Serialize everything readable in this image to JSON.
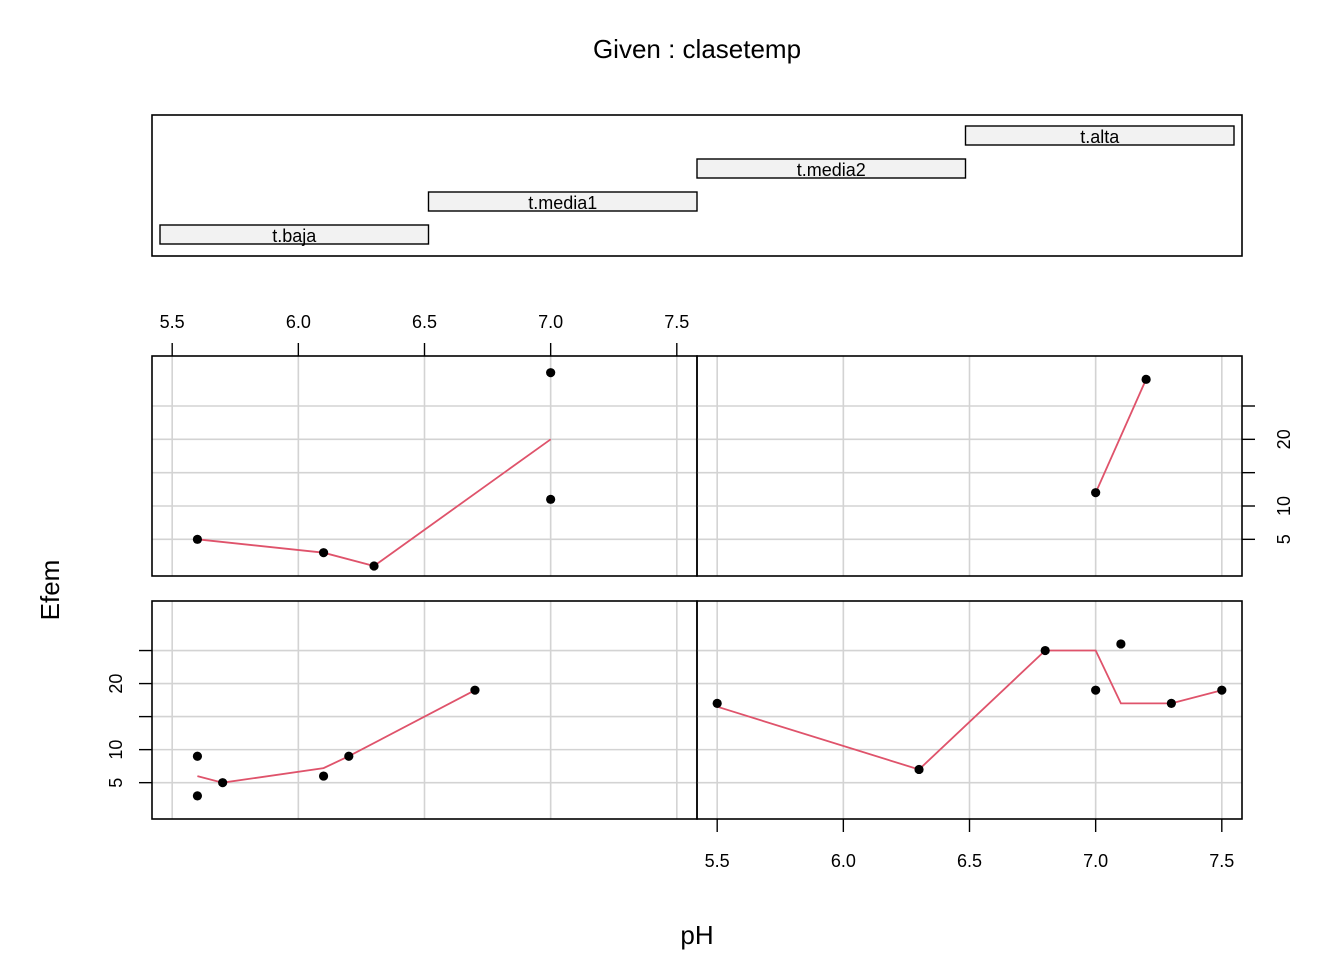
{
  "title": "Given : clasetemp",
  "xlabel": "pH",
  "ylabel": "Efem",
  "colors": {
    "points": "#000000",
    "smooth_line": "#DF536B",
    "grid": "#D3D3D3",
    "given_bar_fill": "#F2F2F2"
  },
  "chart_data": {
    "type": "scatter",
    "title": "Given : clasetemp",
    "xlabel": "pH",
    "ylabel": "Efem",
    "grid": true,
    "xlim": [
      5.5,
      7.5
    ],
    "x_ticks": [
      "5.5",
      "6.0",
      "6.5",
      "7.0",
      "7.5"
    ],
    "y_ticks": [
      "5",
      "10",
      "20"
    ],
    "given": {
      "variable": "clasetemp",
      "levels": [
        "t.baja",
        "t.media1",
        "t.media2",
        "t.alta"
      ]
    },
    "panels": [
      {
        "level": "t.baja",
        "points": [
          [
            5.6,
            9
          ],
          [
            5.6,
            3
          ],
          [
            5.7,
            5
          ],
          [
            6.1,
            6
          ],
          [
            6.2,
            9
          ],
          [
            6.7,
            19
          ]
        ],
        "smooth": [
          [
            5.6,
            6
          ],
          [
            5.7,
            5
          ],
          [
            6.1,
            7.2
          ],
          [
            6.2,
            9
          ],
          [
            6.7,
            19
          ]
        ]
      },
      {
        "level": "t.media1",
        "points": [
          [
            5.5,
            17
          ],
          [
            6.3,
            7
          ],
          [
            6.8,
            25
          ],
          [
            7.0,
            19
          ],
          [
            7.1,
            26
          ],
          [
            7.3,
            17
          ],
          [
            7.5,
            19
          ]
        ],
        "smooth": [
          [
            5.5,
            16.5
          ],
          [
            6.3,
            7
          ],
          [
            6.8,
            25
          ],
          [
            7.0,
            25
          ],
          [
            7.1,
            17
          ],
          [
            7.3,
            17
          ],
          [
            7.5,
            19
          ]
        ]
      },
      {
        "level": "t.media2",
        "points": [
          [
            5.6,
            5
          ],
          [
            6.1,
            3
          ],
          [
            6.3,
            1
          ],
          [
            7.0,
            30
          ],
          [
            7.0,
            11
          ]
        ],
        "smooth": [
          [
            5.6,
            5
          ],
          [
            6.1,
            3
          ],
          [
            6.3,
            1
          ],
          [
            7.0,
            20
          ]
        ]
      },
      {
        "level": "t.alta",
        "points": [
          [
            7.0,
            12
          ],
          [
            7.2,
            29
          ]
        ],
        "smooth": [
          [
            7.0,
            12
          ],
          [
            7.2,
            29
          ]
        ]
      }
    ]
  }
}
